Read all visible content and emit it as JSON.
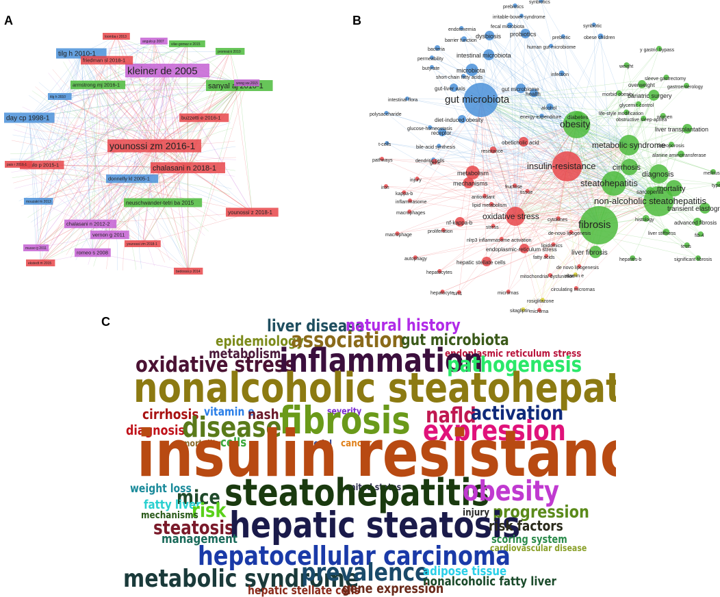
{
  "panels": {
    "a": {
      "letter": "A"
    },
    "b": {
      "letter": "B"
    },
    "c": {
      "letter": "C"
    }
  },
  "colors": {
    "red": "#e8474a",
    "blue": "#4a90d9",
    "green": "#4cbb3c",
    "purple": "#c461d4",
    "yellow": "#d8d030"
  },
  "network_a": {
    "nodes": [
      {
        "label": "kleiner de 2005",
        "cluster": "purple",
        "size": 3
      },
      {
        "label": "younossi zm 2016-1",
        "cluster": "red",
        "size": 3
      },
      {
        "label": "chalasani n 2018-1",
        "cluster": "red",
        "size": 2
      },
      {
        "label": "sanyal aj 2010-1",
        "cluster": "green",
        "size": 2
      },
      {
        "label": "day cp 1998-1",
        "cluster": "blue",
        "size": 2
      },
      {
        "label": "tilg h 2010-1",
        "cluster": "blue",
        "size": 2
      },
      {
        "label": "friedman sl 2018-1",
        "cluster": "red",
        "size": 1
      },
      {
        "label": "neuschwander-tetri ba 2015",
        "cluster": "green",
        "size": 1
      },
      {
        "label": "younossi z 2018-1",
        "cluster": "red",
        "size": 1
      },
      {
        "label": "armstrong mj 2016-1",
        "cluster": "green",
        "size": 1
      },
      {
        "label": "buzzetti e 2016-1",
        "cluster": "red",
        "size": 1
      },
      {
        "label": "angulo p 2015-1",
        "cluster": "red",
        "size": 1
      },
      {
        "label": "chalasani n 2012-2",
        "cluster": "purple",
        "size": 1
      },
      {
        "label": "donnelly kl 2005-1",
        "cluster": "blue",
        "size": 1
      },
      {
        "label": "vernon g 2011",
        "cluster": "purple",
        "size": 1
      },
      {
        "label": "romeo s 2008",
        "cluster": "purple",
        "size": 1
      },
      {
        "label": "younossi zm 2018-1",
        "cluster": "red",
        "size": 0
      },
      {
        "label": "ekstedt m 2015",
        "cluster": "red",
        "size": 0
      },
      {
        "label": "loomba r 2013",
        "cluster": "red",
        "size": 0
      },
      {
        "label": "vilar-gomez e 2015",
        "cluster": "green",
        "size": 0
      },
      {
        "label": "promrat k 2010",
        "cluster": "green",
        "size": 0
      },
      {
        "label": "bedossa p 2014",
        "cluster": "red",
        "size": 0
      },
      {
        "label": "musso g 2011",
        "cluster": "purple",
        "size": 0
      },
      {
        "label": "wong vw 2015",
        "cluster": "purple",
        "size": 0
      },
      {
        "label": "pais r 2016-1",
        "cluster": "red",
        "size": 0
      },
      {
        "label": "tilg h 2010",
        "cluster": "blue",
        "size": 0
      },
      {
        "label": "mouzaki m 2013",
        "cluster": "blue",
        "size": 0
      },
      {
        "label": "angulo p 2007",
        "cluster": "purple",
        "size": 0
      }
    ]
  },
  "network_b": {
    "terms": [
      {
        "label": "gut microbiota",
        "cluster": "blue",
        "size": 3
      },
      {
        "label": "insulin-resistance",
        "cluster": "red",
        "size": 3
      },
      {
        "label": "fibrosis",
        "cluster": "green",
        "size": 3
      },
      {
        "label": "obesity",
        "cluster": "green",
        "size": 3
      },
      {
        "label": "steatohepatitis",
        "cluster": "green",
        "size": 3
      },
      {
        "label": "non-alcoholic steatohepatitis",
        "cluster": "green",
        "size": 3
      },
      {
        "label": "metabolic syndrome",
        "cluster": "green",
        "size": 2
      },
      {
        "label": "oxidative stress",
        "cluster": "red",
        "size": 2
      },
      {
        "label": "diagnosis",
        "cluster": "green",
        "size": 2
      },
      {
        "label": "cirrhosis",
        "cluster": "green",
        "size": 2
      },
      {
        "label": "mortality",
        "cluster": "green",
        "size": 2
      },
      {
        "label": "liver fibrosis",
        "cluster": "green",
        "size": 1
      },
      {
        "label": "transient elastography",
        "cluster": "green",
        "size": 1
      },
      {
        "label": "bariatric surgery",
        "cluster": "green",
        "size": 1
      },
      {
        "label": "liver transplantation",
        "cluster": "green",
        "size": 1
      },
      {
        "label": "intestinal microbiota",
        "cluster": "blue",
        "size": 1
      },
      {
        "label": "microbiota",
        "cluster": "blue",
        "size": 1
      },
      {
        "label": "probiotics",
        "cluster": "blue",
        "size": 1
      },
      {
        "label": "dysbiosis",
        "cluster": "blue",
        "size": 1
      },
      {
        "label": "metabolism",
        "cluster": "red",
        "size": 1
      },
      {
        "label": "mechanisms",
        "cluster": "red",
        "size": 1
      },
      {
        "label": "endoplasmic-reticulum stress",
        "cluster": "red",
        "size": 1
      },
      {
        "label": "hepatic stellate cells",
        "cluster": "red",
        "size": 1
      },
      {
        "label": "obeticholic acid",
        "cluster": "red",
        "size": 1
      },
      {
        "label": "nf-kappa-b",
        "cluster": "red",
        "size": 1
      },
      {
        "label": "diet-induced obesity",
        "cluster": "blue",
        "size": 1
      },
      {
        "label": "gut-liver axis",
        "cluster": "blue",
        "size": 1
      },
      {
        "label": "gut microbiome",
        "cluster": "blue",
        "size": 1
      },
      {
        "label": "receptor",
        "cluster": "blue",
        "size": 1
      },
      {
        "label": "health",
        "cluster": "blue",
        "size": 1
      },
      {
        "label": "diabetes",
        "cluster": "green",
        "size": 1
      },
      {
        "label": "overweight",
        "cluster": "green",
        "size": 1
      },
      {
        "label": "sarcopenia",
        "cluster": "green",
        "size": 1
      },
      {
        "label": "advanced fibrosis",
        "cluster": "green",
        "size": 1
      },
      {
        "label": "alanine aminotransferase",
        "cluster": "green",
        "size": 1
      },
      {
        "label": "histology",
        "cluster": "green",
        "size": 1
      },
      {
        "label": "liver stiffness",
        "cluster": "green",
        "size": 1
      },
      {
        "label": "significant fibrosis",
        "cluster": "green",
        "size": 1
      },
      {
        "label": "hepatitis-b",
        "cluster": "green",
        "size": 1
      },
      {
        "label": "fib-4",
        "cluster": "green",
        "size": 1
      },
      {
        "label": "tests",
        "cluster": "green",
        "size": 1
      },
      {
        "label": "women",
        "cluster": "green",
        "size": 1
      },
      {
        "label": "sleeve gastrectomy",
        "cluster": "green",
        "size": 1
      },
      {
        "label": "y gastric bypass",
        "cluster": "green",
        "size": 1
      },
      {
        "label": "weight",
        "cluster": "green",
        "size": 1
      },
      {
        "label": "gastroenterology",
        "cluster": "green",
        "size": 1
      },
      {
        "label": "morbid obesity",
        "cluster": "green",
        "size": 1
      },
      {
        "label": "glycemic control",
        "cluster": "green",
        "size": 1
      },
      {
        "label": "life-style modification",
        "cluster": "green",
        "size": 1
      },
      {
        "label": "obstructive sleep-apnea",
        "cluster": "green",
        "size": 1
      },
      {
        "label": "osteoporosis",
        "cluster": "green",
        "size": 1
      },
      {
        "label": "mellitus",
        "cluster": "green",
        "size": 1
      },
      {
        "label": "type 2",
        "cluster": "green",
        "size": 1
      },
      {
        "label": "alcohol",
        "cluster": "blue",
        "size": 1
      },
      {
        "label": "infection",
        "cluster": "blue",
        "size": 1
      },
      {
        "label": "obese children",
        "cluster": "blue",
        "size": 1
      },
      {
        "label": "synbiotic",
        "cluster": "blue",
        "size": 1
      },
      {
        "label": "prebiotic",
        "cluster": "blue",
        "size": 1
      },
      {
        "label": "prebiotics",
        "cluster": "blue",
        "size": 1
      },
      {
        "label": "synbiotics",
        "cluster": "blue",
        "size": 1
      },
      {
        "label": "irritable-bowel-syndrome",
        "cluster": "blue",
        "size": 1
      },
      {
        "label": "fecal microbiota",
        "cluster": "blue",
        "size": 1
      },
      {
        "label": "endotoxemia",
        "cluster": "blue",
        "size": 1
      },
      {
        "label": "barrier function",
        "cluster": "blue",
        "size": 1
      },
      {
        "label": "human gut microbiome",
        "cluster": "blue",
        "size": 1
      },
      {
        "label": "bacteria",
        "cluster": "blue",
        "size": 1
      },
      {
        "label": "permeability",
        "cluster": "blue",
        "size": 1
      },
      {
        "label": "butyrate",
        "cluster": "blue",
        "size": 1
      },
      {
        "label": "short-chain fatty acids",
        "cluster": "blue",
        "size": 1
      },
      {
        "label": "intestinal flora",
        "cluster": "blue",
        "size": 1
      },
      {
        "label": "polysaccharide",
        "cluster": "blue",
        "size": 1
      },
      {
        "label": "glucose-homeostasis",
        "cluster": "blue",
        "size": 1
      },
      {
        "label": "energy-expenditure",
        "cluster": "blue",
        "size": 1
      },
      {
        "label": "t-cells",
        "cluster": "blue",
        "size": 1
      },
      {
        "label": "bile-acid synthesis",
        "cluster": "blue",
        "size": 1
      },
      {
        "label": "dendritic cells",
        "cluster": "blue",
        "size": 1
      },
      {
        "label": "pathways",
        "cluster": "red",
        "size": 1
      },
      {
        "label": "gene",
        "cluster": "red",
        "size": 1
      },
      {
        "label": "resistance",
        "cluster": "red",
        "size": 1
      },
      {
        "label": "injury",
        "cluster": "red",
        "size": 1
      },
      {
        "label": "iron",
        "cluster": "red",
        "size": 1
      },
      {
        "label": "kappa-b",
        "cluster": "red",
        "size": 1
      },
      {
        "label": "inflammasome",
        "cluster": "red",
        "size": 1
      },
      {
        "label": "fructose",
        "cluster": "red",
        "size": 1
      },
      {
        "label": "antioxidant",
        "cluster": "red",
        "size": 1
      },
      {
        "label": "tissue",
        "cluster": "red",
        "size": 1
      },
      {
        "label": "lipid metabolism",
        "cluster": "red",
        "size": 1
      },
      {
        "label": "macrophages",
        "cluster": "red",
        "size": 1
      },
      {
        "label": "macrophage",
        "cluster": "red",
        "size": 1
      },
      {
        "label": "proliferation",
        "cluster": "red",
        "size": 1
      },
      {
        "label": "stress",
        "cluster": "red",
        "size": 1
      },
      {
        "label": "cytokines",
        "cluster": "red",
        "size": 1
      },
      {
        "label": "de-novo lipogenesis",
        "cluster": "red",
        "size": 1
      },
      {
        "label": "nlrp3 inflammasome activation",
        "cluster": "red",
        "size": 1
      },
      {
        "label": "lipidomics",
        "cluster": "red",
        "size": 1
      },
      {
        "label": "autophagy",
        "cluster": "red",
        "size": 1
      },
      {
        "label": "fatty acids",
        "cluster": "red",
        "size": 1
      },
      {
        "label": "hepatocytes",
        "cluster": "red",
        "size": 1
      },
      {
        "label": "mitochondrial dysfunction",
        "cluster": "red",
        "size": 1
      },
      {
        "label": "de novo lipogenesis",
        "cluster": "red",
        "size": 1
      },
      {
        "label": "vitamin e",
        "cluster": "yellow",
        "size": 1
      },
      {
        "label": "hepatocyte",
        "cluster": "red",
        "size": 1
      },
      {
        "label": "sirt1",
        "cluster": "red",
        "size": 1
      },
      {
        "label": "micrornas",
        "cluster": "red",
        "size": 1
      },
      {
        "label": "circulating micrornas",
        "cluster": "red",
        "size": 1
      },
      {
        "label": "rosiglitazone",
        "cluster": "yellow",
        "size": 1
      },
      {
        "label": "microrna",
        "cluster": "red",
        "size": 1
      },
      {
        "label": "sitagliptin",
        "cluster": "yellow",
        "size": 1
      }
    ]
  },
  "wordcloud_c": {
    "words": [
      {
        "text": "liver disease",
        "color": "#1f4e5f"
      },
      {
        "text": "natural history",
        "color": "#b12be8"
      },
      {
        "text": "epidemiology",
        "color": "#7c8b1b"
      },
      {
        "text": "association",
        "color": "#8a6a1a"
      },
      {
        "text": "gut microbiota",
        "color": "#3b5a1a"
      },
      {
        "text": "metabolism",
        "color": "#4a1a3a"
      },
      {
        "text": "endoplasmic reticulum stress",
        "color": "#b8123a"
      },
      {
        "text": "oxidative stress",
        "color": "#4a1233"
      },
      {
        "text": "inflammation",
        "color": "#3b0f3d"
      },
      {
        "text": "pathogenesis",
        "color": "#2be86a"
      },
      {
        "text": "nonalcoholic steatohepatitis",
        "color": "#8c7a12"
      },
      {
        "text": "severity",
        "color": "#7a2ad0"
      },
      {
        "text": "cirrhosis",
        "color": "#a81212"
      },
      {
        "text": "vitamin e",
        "color": "#2b7fe8"
      },
      {
        "text": "nash",
        "color": "#6a1a2a"
      },
      {
        "text": "fibrosis",
        "color": "#6a9a1a"
      },
      {
        "text": "nafld",
        "color": "#c01850"
      },
      {
        "text": "activation",
        "color": "#0f2a7a"
      },
      {
        "text": "diagnosis",
        "color": "#c0121a"
      },
      {
        "text": "disease",
        "color": "#5a7a1a"
      },
      {
        "text": "expression",
        "color": "#e0127a"
      },
      {
        "text": "mortality",
        "color": "#8a6a2a"
      },
      {
        "text": "cells",
        "color": "#3aa83a"
      },
      {
        "text": "model",
        "color": "#2a3a8a"
      },
      {
        "text": "cancer",
        "color": "#e0801a"
      },
      {
        "text": "insulin resistance",
        "color": "#b84a12"
      },
      {
        "text": "weight loss",
        "color": "#1a8a9a"
      },
      {
        "text": "united states",
        "color": "#2a2a4a"
      },
      {
        "text": "mice",
        "color": "#1f4a2a"
      },
      {
        "text": "steatohepatitis",
        "color": "#1a3a0f"
      },
      {
        "text": "obesity",
        "color": "#c03ad0"
      },
      {
        "text": "fatty liver",
        "color": "#2ad0d0"
      },
      {
        "text": "risk",
        "color": "#5ad01a"
      },
      {
        "text": "mechanisms",
        "color": "#2a5a1a"
      },
      {
        "text": "injury",
        "color": "#2a2a2a"
      },
      {
        "text": "progression",
        "color": "#5a8a1a"
      },
      {
        "text": "steatosis",
        "color": "#7a1a2a"
      },
      {
        "text": "hepatic steatosis",
        "color": "#1a1a4a"
      },
      {
        "text": "risk factors",
        "color": "#2a2a1a"
      },
      {
        "text": "management",
        "color": "#1a6a5a"
      },
      {
        "text": "scoring system",
        "color": "#2a8a4a"
      },
      {
        "text": "cardiovascular disease",
        "color": "#8aa02a"
      },
      {
        "text": "hepatocellular carcinoma",
        "color": "#1a3aa8"
      },
      {
        "text": "metabolic syndrome",
        "color": "#1a3a3a"
      },
      {
        "text": "prevalence",
        "color": "#1a4a6a"
      },
      {
        "text": "adipose tissue",
        "color": "#2ad0e8"
      },
      {
        "text": "nonalcoholic fatty liver",
        "color": "#1a4a2a"
      },
      {
        "text": "hepatic stellate cells",
        "color": "#8a2a1a"
      },
      {
        "text": "gene expression",
        "color": "#6a2a1a"
      }
    ]
  }
}
